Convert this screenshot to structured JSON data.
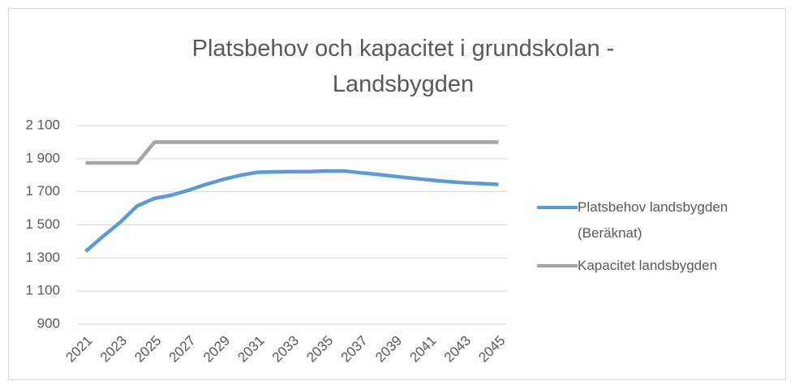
{
  "chart_data": {
    "type": "line",
    "title": "Platsbehov och kapacitet i grundskolan - Landsbygden",
    "categories": [
      "2021",
      null,
      "2023",
      null,
      "2025",
      null,
      "2027",
      null,
      "2029",
      null,
      "2031",
      null,
      "2033",
      null,
      "2035",
      null,
      "2037",
      null,
      "2039",
      null,
      "2041",
      null,
      "2043",
      null,
      "2045"
    ],
    "series": [
      {
        "name": "Platsbehov landsbygden (Beräknat)",
        "color": "#5b9bd5",
        "values": [
          1340,
          1430,
          1515,
          1615,
          1660,
          1680,
          1710,
          1745,
          1775,
          1800,
          1818,
          1820,
          1822,
          1822,
          1826,
          1826,
          1815,
          1805,
          1793,
          1782,
          1772,
          1762,
          1755,
          1750,
          1745
        ]
      },
      {
        "name": "Kapacitet landsbygden",
        "color": "#a5a5a5",
        "values": [
          1875,
          1875,
          1875,
          1875,
          2000,
          2000,
          2000,
          2000,
          2000,
          2000,
          2000,
          2000,
          2000,
          2000,
          2000,
          2000,
          2000,
          2000,
          2000,
          2000,
          2000,
          2000,
          2000,
          2000,
          2000
        ]
      }
    ],
    "ylim": [
      900,
      2100
    ],
    "yticks": [
      900,
      {
        "value": 1100,
        "label": "1 100"
      },
      {
        "value": 1300,
        "label": "1 300"
      },
      {
        "value": 1500,
        "label": "1 500"
      },
      {
        "value": 1700,
        "label": "1 700"
      },
      {
        "value": 1900,
        "label": "1 900"
      },
      {
        "value": 2100,
        "label": "2 100"
      }
    ],
    "grid": true,
    "legend": "right"
  }
}
